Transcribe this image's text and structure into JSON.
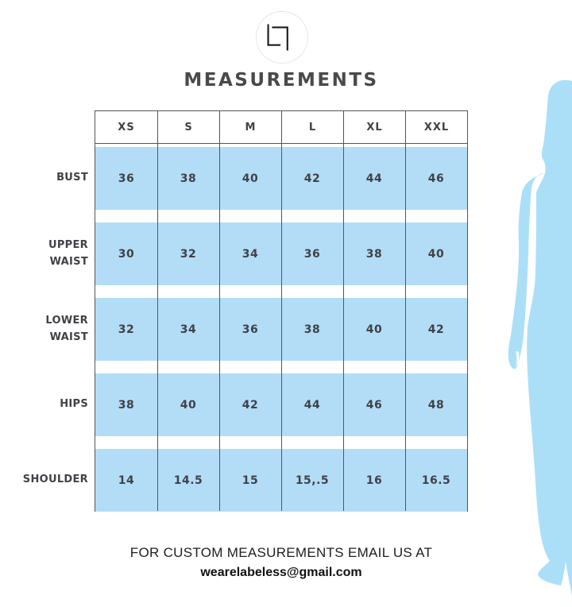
{
  "brand": {
    "logo_icon": "labeless-monogram"
  },
  "title": "MEASUREMENTS",
  "chart_data": {
    "type": "table",
    "title": "MEASUREMENTS",
    "columns": [
      "XS",
      "S",
      "M",
      "L",
      "XL",
      "XXL"
    ],
    "rows": [
      {
        "label": "BUST",
        "values": [
          "36",
          "38",
          "40",
          "42",
          "44",
          "46"
        ]
      },
      {
        "label": "UPPER WAIST",
        "values": [
          "30",
          "32",
          "34",
          "36",
          "38",
          "40"
        ]
      },
      {
        "label": "LOWER WAIST",
        "values": [
          "32",
          "34",
          "36",
          "38",
          "40",
          "42"
        ]
      },
      {
        "label": "HIPS",
        "values": [
          "38",
          "40",
          "42",
          "44",
          "46",
          "48"
        ]
      },
      {
        "label": "SHOULDER",
        "values": [
          "14",
          "14.5",
          "15",
          "15,.5",
          "16",
          "16.5"
        ]
      }
    ]
  },
  "footer": {
    "line1": "FOR CUSTOM MEASUREMENTS EMAIL US AT",
    "email": "wearelabeless@gmail.com"
  },
  "colors": {
    "cell_blue": "#b3ddf7",
    "silhouette_blue": "#abdff8",
    "table_border": "#555555",
    "heading_text": "#4a4a4a",
    "cell_text": "#414147",
    "footer_text": "#1f1f1f"
  }
}
